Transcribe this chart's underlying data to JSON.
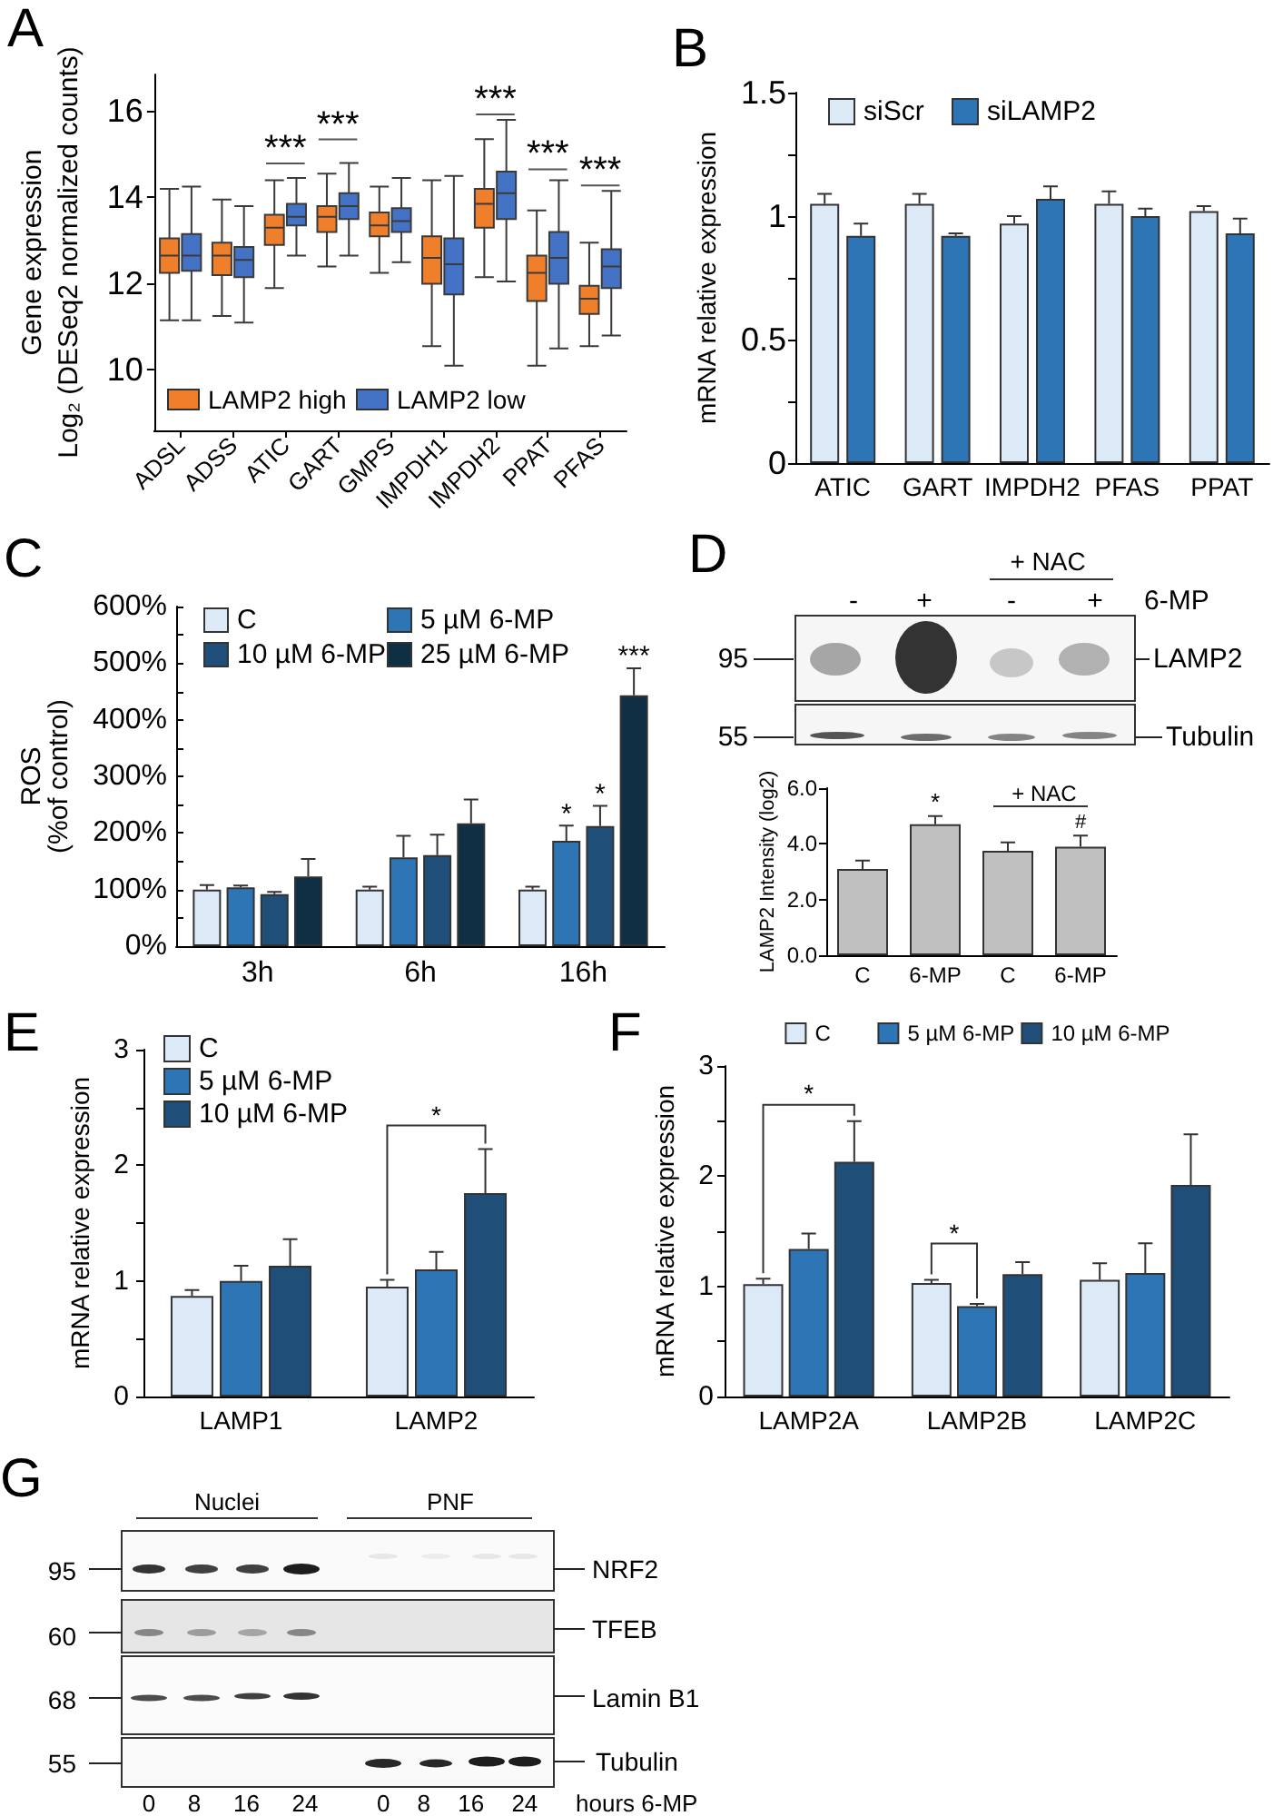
{
  "chart_data": [
    {
      "type": "box",
      "title": "A",
      "ylabel": "Gene expression\nLog₂ (DESeq2 normalized counts)",
      "categories": [
        "ADSL",
        "ADSS",
        "ATIC",
        "GART",
        "GMPS",
        "IMPDH1",
        "IMPDH2",
        "PPAT",
        "PFAS"
      ],
      "series": [
        {
          "name": "LAMP2 high",
          "color": "#f07f2c",
          "boxes": [
            {
              "low": 11.15,
              "q1": 12.25,
              "median": 12.65,
              "q3": 13.05,
              "high": 14.2
            },
            {
              "low": 11.25,
              "q1": 12.2,
              "median": 12.65,
              "q3": 12.95,
              "high": 13.95
            },
            {
              "low": 11.9,
              "q1": 12.9,
              "median": 13.3,
              "q3": 13.6,
              "high": 14.4
            },
            {
              "low": 12.4,
              "q1": 13.2,
              "median": 13.55,
              "q3": 13.8,
              "high": 14.55
            },
            {
              "low": 12.25,
              "q1": 13.1,
              "median": 13.35,
              "q3": 13.65,
              "high": 14.25
            },
            {
              "low": 10.55,
              "q1": 12.0,
              "median": 12.6,
              "q3": 13.1,
              "high": 14.4
            },
            {
              "low": 12.15,
              "q1": 13.3,
              "median": 13.85,
              "q3": 14.2,
              "high": 15.35
            },
            {
              "low": 10.1,
              "q1": 11.6,
              "median": 12.25,
              "q3": 12.65,
              "high": 13.7
            },
            {
              "low": 10.55,
              "q1": 11.3,
              "median": 11.65,
              "q3": 11.95,
              "high": 12.95
            }
          ]
        },
        {
          "name": "LAMP2 low",
          "color": "#4472c4",
          "boxes": [
            {
              "low": 11.15,
              "q1": 12.3,
              "median": 12.65,
              "q3": 13.15,
              "high": 14.25
            },
            {
              "low": 11.1,
              "q1": 12.15,
              "median": 12.55,
              "q3": 12.85,
              "high": 13.8
            },
            {
              "low": 12.65,
              "q1": 13.35,
              "median": 13.55,
              "q3": 13.85,
              "high": 14.45
            },
            {
              "low": 12.65,
              "q1": 13.5,
              "median": 13.8,
              "q3": 14.1,
              "high": 14.8
            },
            {
              "low": 12.5,
              "q1": 13.2,
              "median": 13.45,
              "q3": 13.75,
              "high": 14.45
            },
            {
              "low": 10.1,
              "q1": 11.75,
              "median": 12.45,
              "q3": 13.05,
              "high": 14.5
            },
            {
              "low": 12.05,
              "q1": 13.5,
              "median": 14.1,
              "q3": 14.6,
              "high": 15.8
            },
            {
              "low": 10.5,
              "q1": 12.0,
              "median": 12.6,
              "q3": 13.2,
              "high": 14.4
            },
            {
              "low": 10.8,
              "q1": 11.9,
              "median": 12.4,
              "q3": 12.8,
              "high": 14.15
            }
          ]
        }
      ],
      "ylim": [
        8.6,
        16.85
      ],
      "yticks": [
        10,
        12,
        14,
        16
      ],
      "legend": "bottom left",
      "annotations": [
        "***",
        "***",
        "***",
        "***",
        "***"
      ]
    },
    {
      "type": "bar",
      "title": "B",
      "ylabel": "mRNA relative expression",
      "categories": [
        "ATIC",
        "GART",
        "IMPDH2",
        "PFAS",
        "PPAT"
      ],
      "series": [
        {
          "name": "siScr",
          "color": "#dce9f6",
          "values": [
            1.05,
            1.05,
            0.97,
            1.05,
            1.02
          ],
          "errors": [
            [
              1.05,
              1.09
            ],
            [
              1.05,
              1.09
            ],
            [
              0.97,
              1.0
            ],
            [
              1.05,
              1.1
            ],
            [
              1.02,
              1.04
            ]
          ]
        },
        {
          "name": "siLAMP2",
          "color": "#2e75b6",
          "values": [
            0.92,
            0.92,
            1.07,
            1.0,
            0.93
          ],
          "errors": [
            [
              0.92,
              0.97
            ],
            [
              0.92,
              0.93
            ],
            [
              1.07,
              1.12
            ],
            [
              1.0,
              1.03
            ],
            [
              0.93,
              0.99
            ]
          ]
        }
      ],
      "ylim": [
        0,
        1.5
      ],
      "yticks": [
        0,
        {
          "value": 0.25,
          "label": null
        },
        0.5,
        {
          "value": 0.75,
          "label": null
        },
        1,
        {
          "value": 1.25,
          "label": null
        },
        1.5
      ],
      "legend": "top left"
    },
    {
      "type": "bar",
      "title": "C",
      "ylabel": "ROS\n(%of control)",
      "categories": [
        "3h",
        "6h",
        "16h"
      ],
      "series": [
        {
          "name": "C",
          "color": "#dce9f6",
          "values": [
            100,
            100,
            100
          ],
          "errors": [
            [
              100,
              108
            ],
            [
              100,
              105
            ],
            [
              100,
              105
            ]
          ]
        },
        {
          "name": "5 µM 6-MP",
          "color": "#2e75b6",
          "values": [
            104,
            157,
            186
          ],
          "errors": [
            [
              104,
              107
            ],
            [
              157,
              195
            ],
            [
              186,
              213
            ]
          ]
        },
        {
          "name": "10 µM 6-MP",
          "color": "#1f4e79",
          "values": [
            92,
            161,
            212
          ],
          "errors": [
            [
              92,
              96
            ],
            [
              161,
              197
            ],
            [
              212,
              248
            ]
          ]
        },
        {
          "name": "25 µM 6-MP",
          "color": "#0e2f44",
          "values": [
            123,
            217,
            443
          ],
          "errors": [
            [
              123,
              154
            ],
            [
              217,
              259
            ],
            [
              443,
              491
            ]
          ]
        }
      ],
      "ylim": [
        0,
        600
      ],
      "yticks": [
        {
          "value": 0,
          "label": "0%"
        },
        {
          "value": 50,
          "label": null
        },
        {
          "value": 100,
          "label": "100%"
        },
        {
          "value": 150,
          "label": null
        },
        {
          "value": 200,
          "label": "200%"
        },
        {
          "value": 250,
          "label": null
        },
        {
          "value": 300,
          "label": "300%"
        },
        {
          "value": 350,
          "label": null
        },
        {
          "value": 400,
          "label": "400%"
        },
        {
          "value": 450,
          "label": null
        },
        {
          "value": 500,
          "label": "500%"
        },
        {
          "value": 550,
          "label": null
        },
        {
          "value": 600,
          "label": "600%"
        }
      ],
      "legend": "top left",
      "annotations": [
        "*",
        "*",
        "***"
      ]
    },
    {
      "type": "other",
      "title": "D",
      "annotations": [
        "+ NAC",
        "-",
        "+",
        "-",
        "+",
        "6-MP",
        "95",
        "55",
        "LAMP2",
        "Tubulin"
      ]
    },
    {
      "type": "bar",
      "ylabel": "LAMP2 Intensity (log2)",
      "categories": [
        "C",
        "6-MP",
        "C",
        "6-MP"
      ],
      "values": [
        3.1,
        4.7,
        3.75,
        3.9
      ],
      "color": "#c0c0c0",
      "errors": [
        [
          3.1,
          3.4
        ],
        [
          4.7,
          5.0
        ],
        [
          3.75,
          4.05
        ],
        [
          3.9,
          4.3
        ]
      ],
      "ylim": [
        0,
        6
      ],
      "yticks": [
        {
          "value": 0,
          "label": "0.0"
        },
        {
          "value": 2,
          "label": "2.0"
        },
        {
          "value": 4,
          "label": "4.0"
        },
        {
          "value": 6,
          "label": "6.0"
        }
      ],
      "annotations": [
        "*",
        "+ NAC",
        "#"
      ]
    },
    {
      "type": "bar",
      "title": "E",
      "ylabel": "mRNA relative expression",
      "categories": [
        "LAMP1",
        "LAMP2"
      ],
      "series": [
        {
          "name": "C",
          "color": "#dce9f6",
          "values": [
            0.87,
            0.95
          ],
          "errors": [
            [
              0.87,
              0.92
            ],
            [
              0.95,
              1.01
            ]
          ]
        },
        {
          "name": "5 µM 6-MP",
          "color": "#2e75b6",
          "values": [
            1.0,
            1.1
          ],
          "errors": [
            [
              1.0,
              1.13
            ],
            [
              1.1,
              1.25
            ]
          ]
        },
        {
          "name": "10 µM 6-MP",
          "color": "#1f4e79",
          "values": [
            1.13,
            1.76
          ],
          "errors": [
            [
              1.13,
              1.36
            ],
            [
              1.76,
              2.14
            ]
          ]
        }
      ],
      "ylim": [
        0,
        3
      ],
      "yticks": [
        0,
        {
          "value": 0.5,
          "label": null
        },
        1,
        {
          "value": 1.5,
          "label": null
        },
        2,
        {
          "value": 2.5,
          "label": null
        },
        3
      ],
      "legend": "top left",
      "annotations": [
        "*"
      ]
    },
    {
      "type": "bar",
      "title": "F",
      "ylabel": "mRNA relative expression",
      "categories": [
        "LAMP2A",
        "LAMP2B",
        "LAMP2C"
      ],
      "series": [
        {
          "name": "C",
          "color": "#dce9f6",
          "values": [
            1.02,
            1.03,
            1.06
          ],
          "errors": [
            [
              1.02,
              1.07
            ],
            [
              1.03,
              1.06
            ],
            [
              1.06,
              1.21
            ]
          ]
        },
        {
          "name": "5 µM 6-MP",
          "color": "#2e75b6",
          "values": [
            1.34,
            0.82,
            1.12
          ],
          "errors": [
            [
              1.34,
              1.48
            ],
            [
              0.82,
              0.84
            ],
            [
              1.12,
              1.39
            ]
          ]
        },
        {
          "name": "10 µM 6-MP",
          "color": "#1f4e79",
          "values": [
            2.13,
            1.11,
            1.92
          ],
          "errors": [
            [
              2.13,
              2.5
            ],
            [
              1.11,
              1.22
            ],
            [
              1.92,
              2.38
            ]
          ]
        }
      ],
      "ylim": [
        0,
        3
      ],
      "yticks": [
        0,
        {
          "value": 0.5,
          "label": null
        },
        1,
        {
          "value": 1.5,
          "label": null
        },
        2,
        {
          "value": 2.5,
          "label": null
        },
        3
      ],
      "legend": "top",
      "annotations": [
        "*",
        "*"
      ]
    },
    {
      "type": "other",
      "title": "G",
      "annotations": [
        "Nuclei",
        "PNF",
        "95",
        "60",
        "68",
        "55",
        "NRF2",
        "TFEB",
        "Lamin B1",
        "Tubulin",
        "0 8 16 24",
        "0 8 16 24",
        "hours 6-MP"
      ]
    }
  ]
}
